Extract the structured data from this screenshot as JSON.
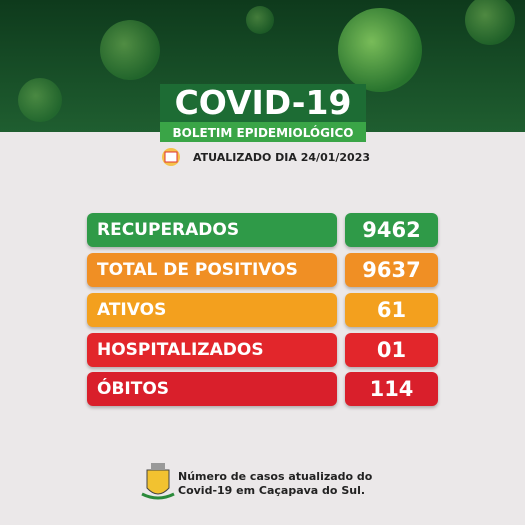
{
  "header": {
    "title": "COVID-19",
    "subtitle": "BOLETIM EPIDEMIOLÓGICO",
    "updated": "ATUALIZADO DIA 24/01/2023"
  },
  "rows": [
    {
      "label": "RECUPERADOS",
      "value": "9462",
      "color": "#2f9a48"
    },
    {
      "label": "TOTAL DE POSITIVOS",
      "value": "9637",
      "color": "#f08f24"
    },
    {
      "label": "ATIVOS",
      "value": "61",
      "color": "#f3a01e"
    },
    {
      "label": "HOSPITALIZADOS",
      "value": "01",
      "color": "#e2262b"
    },
    {
      "label": "ÓBITOS",
      "value": "114",
      "color": "#d91f2b"
    }
  ],
  "footer": {
    "lines": [
      "Número de casos atualizado do",
      "Covid-19 em Caçapava do Sul."
    ]
  }
}
